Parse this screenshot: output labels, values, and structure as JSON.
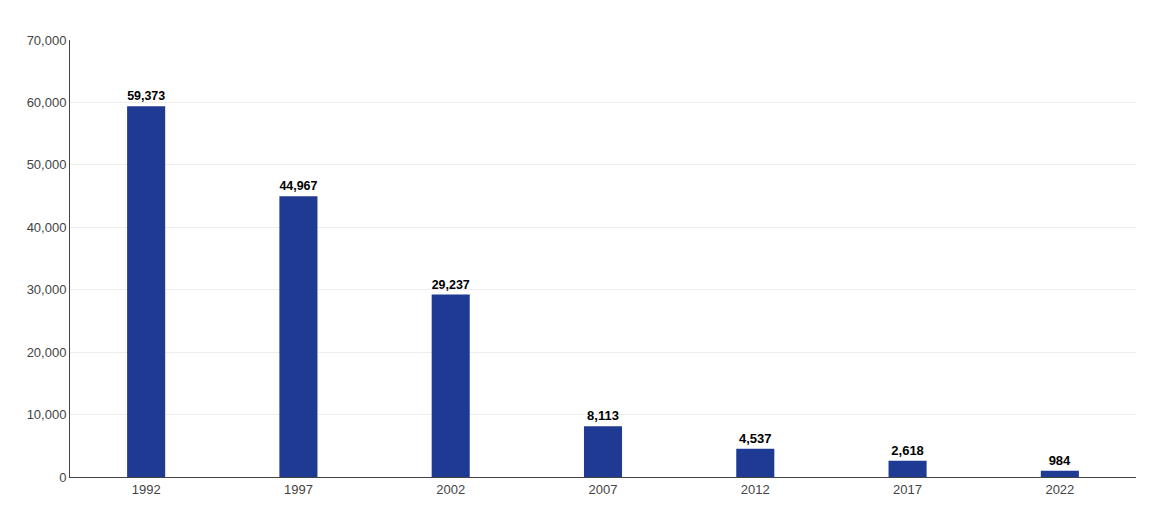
{
  "chart_data": {
    "type": "bar",
    "categories": [
      "1992",
      "1997",
      "2002",
      "2007",
      "2012",
      "2017",
      "2022"
    ],
    "values": [
      59373,
      44967,
      29237,
      8113,
      4537,
      2618,
      984
    ],
    "value_labels": [
      "59,373",
      "44,967",
      "29,237",
      "8,113",
      "4,537",
      "2,618",
      "984"
    ],
    "data_labels": true,
    "color": "#1F3A93",
    "ylim": [
      0,
      70000
    ],
    "yticks": [
      0,
      {
        "value": 10000,
        "label": "10,000"
      },
      {
        "value": 20000,
        "label": "20,000"
      },
      {
        "value": 30000,
        "label": "30,000"
      },
      {
        "value": 40000,
        "label": "40,000"
      },
      {
        "value": 50000,
        "label": "50,000"
      },
      {
        "value": 60000,
        "label": "60,000"
      },
      {
        "value": 70000,
        "label": "70,000"
      }
    ],
    "grid": true
  }
}
